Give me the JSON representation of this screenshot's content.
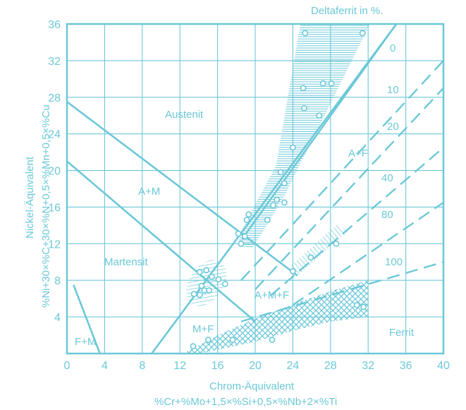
{
  "chart_data": {
    "type": "diagram",
    "title": "",
    "xlabel": "Chrom-Äquivalent",
    "xlabel_formula": "%Cr+%Mo+1,5×%Si+0,5×%Nb+2×%Ti",
    "ylabel": "Nickel-Äquivalent",
    "ylabel_formula": "%Ni+30×%C+30×%N+0,5×%Mn+0,5×%Cu",
    "xlim": [
      0,
      40
    ],
    "ylim": [
      0,
      36
    ],
    "xticks": [
      "0",
      "4",
      "8",
      "12",
      "16",
      "20",
      "24",
      "28",
      "32",
      "36",
      "40"
    ],
    "yticks": [
      "4",
      "8",
      "12",
      "16",
      "20",
      "24",
      "28",
      "32",
      "36"
    ],
    "xticks_values": [
      0,
      4,
      8,
      12,
      16,
      20,
      24,
      28,
      32,
      36,
      40
    ],
    "yticks_values": [
      4,
      8,
      12,
      16,
      20,
      24,
      28,
      32,
      36
    ],
    "grid": true,
    "color": "#6cc8d8",
    "deltaferrit_title": "Deltaferrit in %.",
    "regions": {
      "austenit": "Austenit",
      "a_m": "A+M",
      "martensit": "Martensit",
      "a_f": "A+F",
      "a_m_f": "A+M+F",
      "m_f": "M+F",
      "f_m": "F+M",
      "ferrit": "Ferrit"
    },
    "boundary_lines": [
      {
        "id": "austenit-martensit-boundary",
        "points": [
          [
            0,
            27.5
          ],
          [
            24.5,
            8.5
          ]
        ]
      },
      {
        "id": "martensit-lower-boundary",
        "points": [
          [
            0,
            21
          ],
          [
            20,
            3.5
          ]
        ]
      },
      {
        "id": "austenit-ferrit-boundary",
        "points": [
          [
            9,
            0
          ],
          [
            35,
            36
          ]
        ]
      },
      {
        "id": "f-m-boundary",
        "points": [
          [
            0.7,
            7.5
          ],
          [
            3.5,
            0
          ]
        ]
      }
    ],
    "ferrite_lines": [
      {
        "label": "0",
        "points": [
          [
            18.6,
            12.5
          ],
          [
            35,
            36
          ]
        ]
      },
      {
        "label": "10",
        "points": [
          [
            18.5,
            8
          ],
          [
            40,
            32
          ]
        ]
      },
      {
        "label": "20",
        "points": [
          [
            20,
            7
          ],
          [
            40,
            29
          ]
        ]
      },
      {
        "label": "40",
        "points": [
          [
            21.6,
            6.3
          ],
          [
            40,
            22.5
          ]
        ]
      },
      {
        "label": "80",
        "points": [
          [
            24,
            5.3
          ],
          [
            40,
            16.5
          ]
        ]
      },
      {
        "label": "100",
        "points": [
          [
            18.5,
            3.5
          ],
          [
            40,
            10
          ]
        ]
      }
    ],
    "data_points": [
      [
        25.3,
        35
      ],
      [
        31.4,
        35
      ],
      [
        25.1,
        29
      ],
      [
        27.2,
        29.5
      ],
      [
        28.1,
        29.5
      ],
      [
        25.2,
        26.8
      ],
      [
        26.8,
        26
      ],
      [
        24,
        22.5
      ],
      [
        22.7,
        19.8
      ],
      [
        23.1,
        18.6
      ],
      [
        22.3,
        16.8
      ],
      [
        21.9,
        16.2
      ],
      [
        23.1,
        16.5
      ],
      [
        19.3,
        15.2
      ],
      [
        19.1,
        14.6
      ],
      [
        21.3,
        14.6
      ],
      [
        18.2,
        13.1
      ],
      [
        18.9,
        12.8
      ],
      [
        18.5,
        12
      ],
      [
        14.1,
        8.9
      ],
      [
        14.8,
        9.1
      ],
      [
        15.4,
        8.4
      ],
      [
        16.1,
        8.1
      ],
      [
        14.3,
        7.4
      ],
      [
        16.8,
        7.6
      ],
      [
        14.6,
        6.9
      ],
      [
        13.5,
        6.5
      ],
      [
        14.1,
        6.4
      ],
      [
        15.1,
        6.9
      ],
      [
        24,
        9
      ],
      [
        25.9,
        10.5
      ],
      [
        28.6,
        12
      ],
      [
        13.4,
        0.8
      ],
      [
        15,
        1.5
      ],
      [
        17.6,
        1.5
      ],
      [
        21.8,
        1.5
      ],
      [
        30.8,
        5.3
      ],
      [
        31.5,
        5.1
      ]
    ]
  }
}
